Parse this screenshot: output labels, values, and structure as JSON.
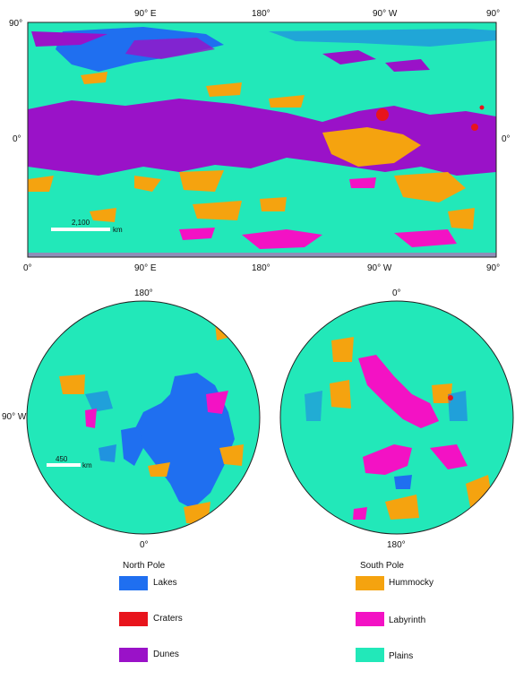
{
  "global_map": {
    "top_labels": [
      "90° E",
      "180°",
      "90° W",
      "90°"
    ],
    "bottom_labels": [
      "0°",
      "90° E",
      "180°",
      "90° W",
      "90°"
    ],
    "left_labels": [
      "90°",
      "0°"
    ],
    "right_label": "0°",
    "scale_value": "2,100",
    "scale_unit": "km"
  },
  "north_pole": {
    "top_label": "180°",
    "left_label": "90° W",
    "bottom_label": "0°",
    "scale_value": "450",
    "scale_unit": "km",
    "caption": "North Pole"
  },
  "south_pole": {
    "top_label": "0°",
    "bottom_label": "180°",
    "caption": "South Pole"
  },
  "legend": [
    {
      "label": "Lakes",
      "color": "#1f6ff0"
    },
    {
      "label": "Craters",
      "color": "#e8141c"
    },
    {
      "label": "Dunes",
      "color": "#9a12c8"
    },
    {
      "label": "Hummocky",
      "color": "#f5a30f"
    },
    {
      "label": "Labyrinth",
      "color": "#f312c4"
    },
    {
      "label": "Plains",
      "color": "#22e8b9"
    }
  ]
}
